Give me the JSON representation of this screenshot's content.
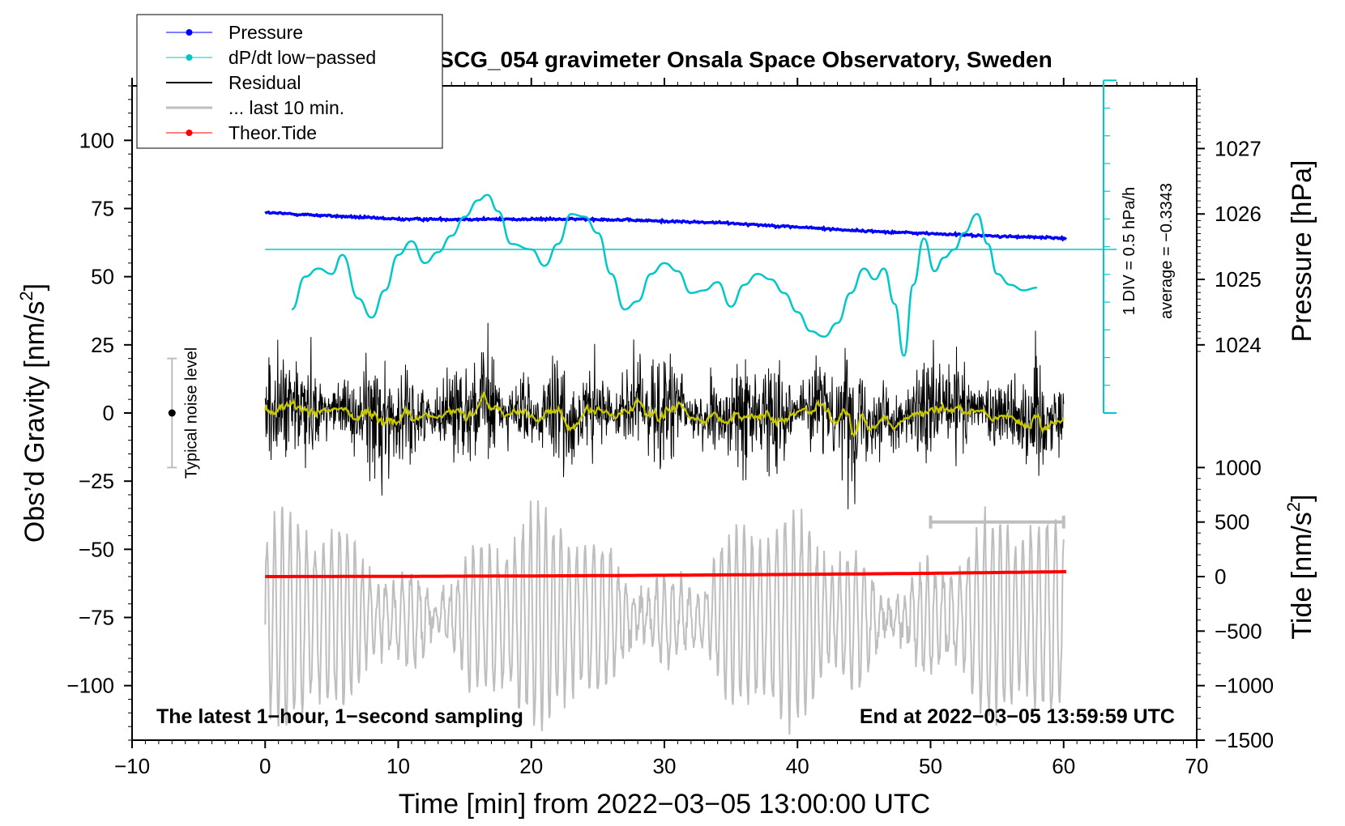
{
  "chart_data": {
    "type": "line",
    "title": "SCG_054 gravimeter Onsala Space Observatory, Sweden",
    "xlabel": "Time [min] from 2022−03−05 13:00:00 UTC",
    "ylabel": "Obs’d Gravity [nm/s",
    "ylabel_sup": "2",
    "ylabel_end": "]",
    "y2label": "Pressure [hPa]",
    "y3label": "Tide [nm/s",
    "y3label_sup": "2",
    "y3label_end": "]",
    "xlim": [
      -10,
      70
    ],
    "ylim": [
      -120,
      120
    ],
    "x_ticks": [
      "−10",
      "0",
      "10",
      "20",
      "30",
      "40",
      "50",
      "60",
      "70"
    ],
    "x_tick_values": [
      -10,
      0,
      10,
      20,
      30,
      40,
      50,
      60,
      70
    ],
    "y_ticks": [
      "100",
      "75",
      "50",
      "25",
      "0",
      "−25",
      "−50",
      "−75",
      "−100"
    ],
    "y_tick_values": [
      100,
      75,
      50,
      25,
      0,
      -25,
      -50,
      -75,
      -100
    ],
    "pressure_ticks": [
      "1027",
      "1026",
      "1025",
      "1024"
    ],
    "pressure_tick_values": [
      1027,
      1026,
      1025,
      1024
    ],
    "pressure_map": {
      "p_ref": 1027,
      "g_ref": 97,
      "g_per_hpa": 24
    },
    "tide_ticks": [
      "1000",
      "500",
      "0",
      "−500",
      "−1000",
      "−1500"
    ],
    "tide_tick_values": [
      1000,
      500,
      0,
      -500,
      -1000,
      -1500
    ],
    "tide_map": {
      "t_ref": 0,
      "g_ref": -60,
      "g_per_unit": 0.04
    },
    "legend": {
      "placement": "top-left",
      "entries": [
        {
          "label": "Pressure",
          "color": "#0000ff",
          "style": "line-dot"
        },
        {
          "label": "dP/dt low−passed",
          "color": "#00c8c8",
          "style": "line-dot"
        },
        {
          "label": "Residual",
          "color": "#000000",
          "style": "line"
        },
        {
          "label": "... last 10 min.",
          "color": "#bebebe",
          "style": "thick-line"
        },
        {
          "label": "Theor.Tide",
          "color": "#ff0000",
          "style": "line-dot"
        }
      ]
    },
    "annotations": {
      "bottom_left": "The latest 1−hour, 1−second sampling",
      "bottom_right": "End at 2022−03−05 13:59:59 UTC",
      "noise_label": "Typical noise level",
      "noise_x": -7,
      "noise_half_range": 20,
      "dpdt_scale": "1 DIV = 0.5 hPa/h",
      "dpdt_average": "average = −0.3343",
      "dpdt_axis_x": 63,
      "dpdt_axis_ylim": [
        0,
        122
      ],
      "dpdt_baseline": 60,
      "last10_bar": {
        "x_start": 50,
        "x_end": 60,
        "y": -40
      }
    },
    "series": [
      {
        "name": "Pressure",
        "color": "#0000ff",
        "unit": "hPa",
        "x": [
          0,
          5,
          10,
          15,
          20,
          25,
          30,
          35,
          40,
          45,
          50,
          55,
          60.2
        ],
        "values": [
          1026.02,
          1025.97,
          1025.92,
          1025.92,
          1025.92,
          1025.92,
          1025.89,
          1025.86,
          1025.8,
          1025.74,
          1025.7,
          1025.66,
          1025.63
        ]
      },
      {
        "name": "dP/dt low-passed",
        "color": "#00c8c8",
        "unit": "gravity-axis units",
        "x": [
          2,
          3,
          4,
          5,
          5.8,
          7,
          8,
          9,
          10,
          11,
          12,
          13,
          14,
          15,
          16,
          16.7,
          17.5,
          18.5,
          20,
          21,
          22,
          23,
          24,
          25,
          26,
          27,
          28,
          29,
          30,
          31,
          32,
          33,
          34,
          35,
          36,
          37,
          38,
          39,
          40,
          41,
          42,
          43,
          44,
          45,
          45.8,
          46.5,
          47.3,
          48,
          48.7,
          49.5,
          50.3,
          51,
          51.8,
          52.5,
          53.5,
          54.3,
          55,
          56,
          57,
          58
        ],
        "values": [
          38,
          50,
          53,
          51,
          58,
          42,
          35,
          45,
          58,
          63,
          55,
          59,
          65,
          72,
          78,
          80,
          74,
          62,
          60,
          54,
          62,
          73,
          72,
          66,
          51,
          38,
          41,
          51,
          55,
          52,
          44,
          45,
          48,
          39,
          47,
          51,
          49,
          44,
          37,
          30,
          28,
          33,
          44,
          53,
          49,
          53,
          40,
          21,
          47,
          64,
          52,
          57,
          60,
          66,
          73,
          62,
          51,
          47,
          45,
          46
        ]
      },
      {
        "name": "Residual",
        "color": "#000000",
        "x_range": [
          0,
          60
        ],
        "note": "1-second residual, mostly within ±35 nm/s2"
      },
      {
        "name": "Residual low-passed",
        "color": "#c8c800",
        "x_range": [
          0,
          60
        ],
        "note": "smoothed residual near 0"
      },
      {
        "name": "... last 10 min.",
        "color": "#bebebe",
        "x_range": [
          0,
          60
        ],
        "note": "residual of last 10 minutes, magnified, centered near −75"
      },
      {
        "name": "Theor.Tide",
        "color": "#ff0000",
        "unit": "nm/s2",
        "x": [
          0,
          10,
          20,
          30,
          40,
          50,
          60.2
        ],
        "values": [
          0,
          2,
          6,
          12,
          20,
          30,
          45
        ]
      }
    ]
  }
}
